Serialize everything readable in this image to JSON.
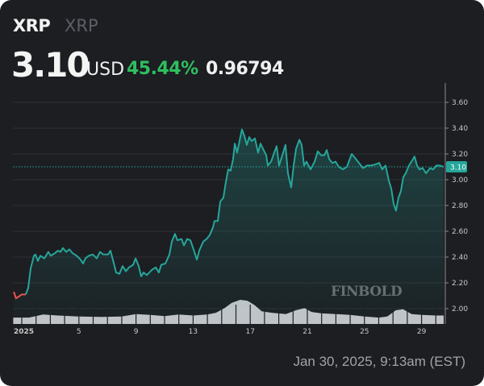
{
  "header": {
    "symbol": "XRP",
    "name": "XRP",
    "price": "3.10",
    "currency": "USD",
    "change_pct": "45.44%",
    "change_abs": "0.96794"
  },
  "footer": {
    "timestamp": "Jan 30, 2025, 9:13am (EST)"
  },
  "watermark": "FINBOLD",
  "colors": {
    "background": "#1c1e22",
    "line_up": "#26a69a",
    "line_down": "#ef5350",
    "change_positive": "#2fbf5f",
    "volume": "#d7d7dc"
  },
  "chart_data": {
    "type": "line",
    "title": "",
    "xlabel": "",
    "ylabel": "",
    "ylim": [
      1.9,
      3.72
    ],
    "y_ticks": [
      "3.60",
      "3.40",
      "3.20",
      "3.00",
      "2.80",
      "2.60",
      "2.40",
      "2.20",
      "2.00"
    ],
    "x_ticks": [
      {
        "day": 1,
        "label": "2025"
      },
      {
        "day": 5,
        "label": "5"
      },
      {
        "day": 9,
        "label": "9"
      },
      {
        "day": 13,
        "label": "13"
      },
      {
        "day": 17,
        "label": "17"
      },
      {
        "day": 21,
        "label": "21"
      },
      {
        "day": 25,
        "label": "25"
      },
      {
        "day": 29,
        "label": "29"
      }
    ],
    "grid": true,
    "last_price_label": "3.10",
    "last_price": 3.1,
    "series": [
      {
        "x": [
          0.44,
          0.6,
          1.0,
          1.28,
          1.45,
          1.62,
          1.85,
          1.96,
          2.13,
          2.3,
          2.58,
          2.86,
          3.03,
          3.32,
          3.54,
          3.71,
          3.88,
          4.11,
          4.33,
          4.56,
          4.84,
          5.12,
          5.29,
          5.46,
          5.69,
          5.97,
          6.25,
          6.48,
          6.71,
          7.05,
          7.21,
          7.38,
          7.61,
          7.84,
          8.06,
          8.29,
          8.51,
          8.8,
          8.97,
          9.19,
          9.36,
          9.53,
          9.76,
          10.1,
          10.38,
          10.6,
          10.77,
          11.06,
          11.34,
          11.51,
          11.73,
          11.9,
          12.19,
          12.36,
          12.58,
          12.81,
          13.03,
          13.26,
          13.43,
          13.71,
          13.94,
          14.16,
          14.39,
          14.5,
          14.73,
          14.9,
          15.12,
          15.29,
          15.46,
          15.63,
          15.8,
          15.92,
          16.08,
          16.25,
          16.42,
          16.59,
          16.76,
          16.93,
          17.1,
          17.33,
          17.55,
          17.72,
          17.89,
          18.12,
          18.23,
          18.46,
          18.68,
          18.85,
          19.02,
          19.25,
          19.47,
          19.64,
          19.87,
          20.04,
          20.21,
          20.44,
          20.6,
          20.77,
          20.94,
          21.23,
          21.51,
          21.73,
          21.96,
          22.19,
          22.36,
          22.53,
          22.75,
          22.98,
          23.2,
          23.49,
          23.77,
          24.11,
          24.33,
          24.62,
          24.9,
          25.18,
          25.46,
          25.8,
          26.03,
          26.25,
          26.48,
          26.71,
          26.88,
          27.05,
          27.21,
          27.38,
          27.55,
          27.72,
          27.89,
          28.12,
          28.29,
          28.51,
          28.68,
          28.85,
          29.08,
          29.31,
          29.59,
          29.81,
          30.04,
          30.27,
          30.55
        ],
        "y": [
          2.13,
          2.08,
          2.11,
          2.11,
          2.16,
          2.31,
          2.41,
          2.42,
          2.37,
          2.41,
          2.39,
          2.44,
          2.41,
          2.43,
          2.45,
          2.44,
          2.47,
          2.44,
          2.46,
          2.43,
          2.41,
          2.38,
          2.35,
          2.39,
          2.41,
          2.42,
          2.39,
          2.44,
          2.42,
          2.42,
          2.45,
          2.38,
          2.28,
          2.27,
          2.33,
          2.29,
          2.32,
          2.34,
          2.39,
          2.33,
          2.25,
          2.28,
          2.26,
          2.3,
          2.32,
          2.28,
          2.34,
          2.35,
          2.42,
          2.52,
          2.58,
          2.53,
          2.54,
          2.49,
          2.54,
          2.53,
          2.46,
          2.38,
          2.45,
          2.52,
          2.54,
          2.57,
          2.63,
          2.68,
          2.68,
          2.83,
          2.86,
          2.98,
          3.08,
          3.07,
          3.16,
          3.28,
          3.21,
          3.3,
          3.39,
          3.34,
          3.27,
          3.33,
          3.3,
          3.32,
          3.21,
          3.28,
          3.24,
          3.19,
          3.11,
          3.14,
          3.21,
          3.26,
          3.11,
          3.19,
          3.27,
          3.05,
          2.94,
          3.11,
          3.24,
          3.31,
          3.27,
          3.11,
          3.14,
          3.08,
          3.14,
          3.22,
          3.19,
          3.19,
          3.23,
          3.16,
          3.13,
          3.14,
          3.1,
          3.08,
          3.1,
          3.2,
          3.17,
          3.13,
          3.09,
          3.11,
          3.11,
          3.12,
          3.13,
          3.08,
          3.11,
          2.99,
          2.93,
          2.81,
          2.76,
          2.86,
          2.91,
          3.02,
          3.05,
          3.11,
          3.14,
          3.18,
          3.11,
          3.08,
          3.09,
          3.05,
          3.09,
          3.08,
          3.11,
          3.11,
          3.1
        ]
      }
    ],
    "volume_relative": {
      "x": [
        0.4,
        1.5,
        2.5,
        3.5,
        5,
        6.5,
        8,
        9,
        10,
        11,
        12,
        13,
        14,
        14.6,
        15.2,
        15.7,
        16.3,
        16.8,
        17.3,
        17.8,
        18.5,
        19.5,
        20.2,
        20.8,
        21.3,
        22,
        23,
        24,
        25,
        26,
        26.6,
        27.2,
        27.7,
        28.3,
        29,
        30,
        30.55
      ],
      "y": [
        0.15,
        0.15,
        0.3,
        0.25,
        0.2,
        0.18,
        0.2,
        0.32,
        0.28,
        0.22,
        0.3,
        0.25,
        0.3,
        0.38,
        0.6,
        0.85,
        1.0,
        0.95,
        0.75,
        0.45,
        0.38,
        0.32,
        0.5,
        0.6,
        0.42,
        0.35,
        0.32,
        0.28,
        0.2,
        0.15,
        0.2,
        0.5,
        0.55,
        0.32,
        0.28,
        0.25,
        0.25
      ]
    }
  }
}
